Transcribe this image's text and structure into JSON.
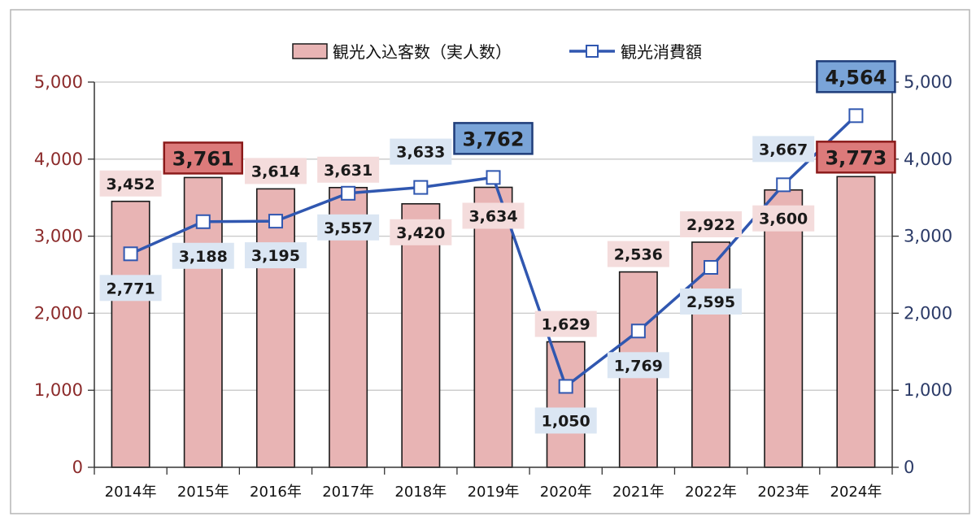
{
  "chart_data": {
    "type": "bar",
    "categories": [
      "2014年",
      "2015年",
      "2016年",
      "2017年",
      "2018年",
      "2019年",
      "2020年",
      "2021年",
      "2022年",
      "2023年",
      "2024年"
    ],
    "series": [
      {
        "name": "観光入込客数（実人数）",
        "kind": "bar",
        "axis": "left",
        "values": [
          3452,
          3761,
          3614,
          3631,
          3420,
          3634,
          1629,
          2536,
          2922,
          3600,
          3773
        ],
        "labels": [
          "3,452",
          "3,761",
          "3,614",
          "3,631",
          "3,420",
          "3,634",
          "1,629",
          "2,536",
          "2,922",
          "3,600",
          "3,773"
        ],
        "color": "#e8b4b4",
        "highlighted": [
          1,
          10
        ]
      },
      {
        "name": "観光消費額",
        "kind": "line",
        "axis": "right",
        "values": [
          2771,
          3188,
          3195,
          3557,
          3633,
          3762,
          1050,
          1769,
          2595,
          3667,
          4564
        ],
        "labels": [
          "2,771",
          "3,188",
          "3,195",
          "3,557",
          "3,633",
          "3,762",
          "1,050",
          "1,769",
          "2,595",
          "3,667",
          "4,564"
        ],
        "color": "#3057b0",
        "highlighted": [
          5,
          10
        ]
      }
    ],
    "left_axis": {
      "ylim": [
        0,
        5000
      ],
      "ticks": [
        "0",
        "1,000",
        "2,000",
        "3,000",
        "4,000",
        "5,000"
      ]
    },
    "right_axis": {
      "ylim": [
        0,
        5000
      ],
      "ticks": [
        "0",
        "1,000",
        "2,000",
        "3,000",
        "4,000",
        "5,000"
      ]
    },
    "legend_position": "top-center",
    "grid": true,
    "title": "",
    "xlabel": "",
    "ylabel": ""
  }
}
